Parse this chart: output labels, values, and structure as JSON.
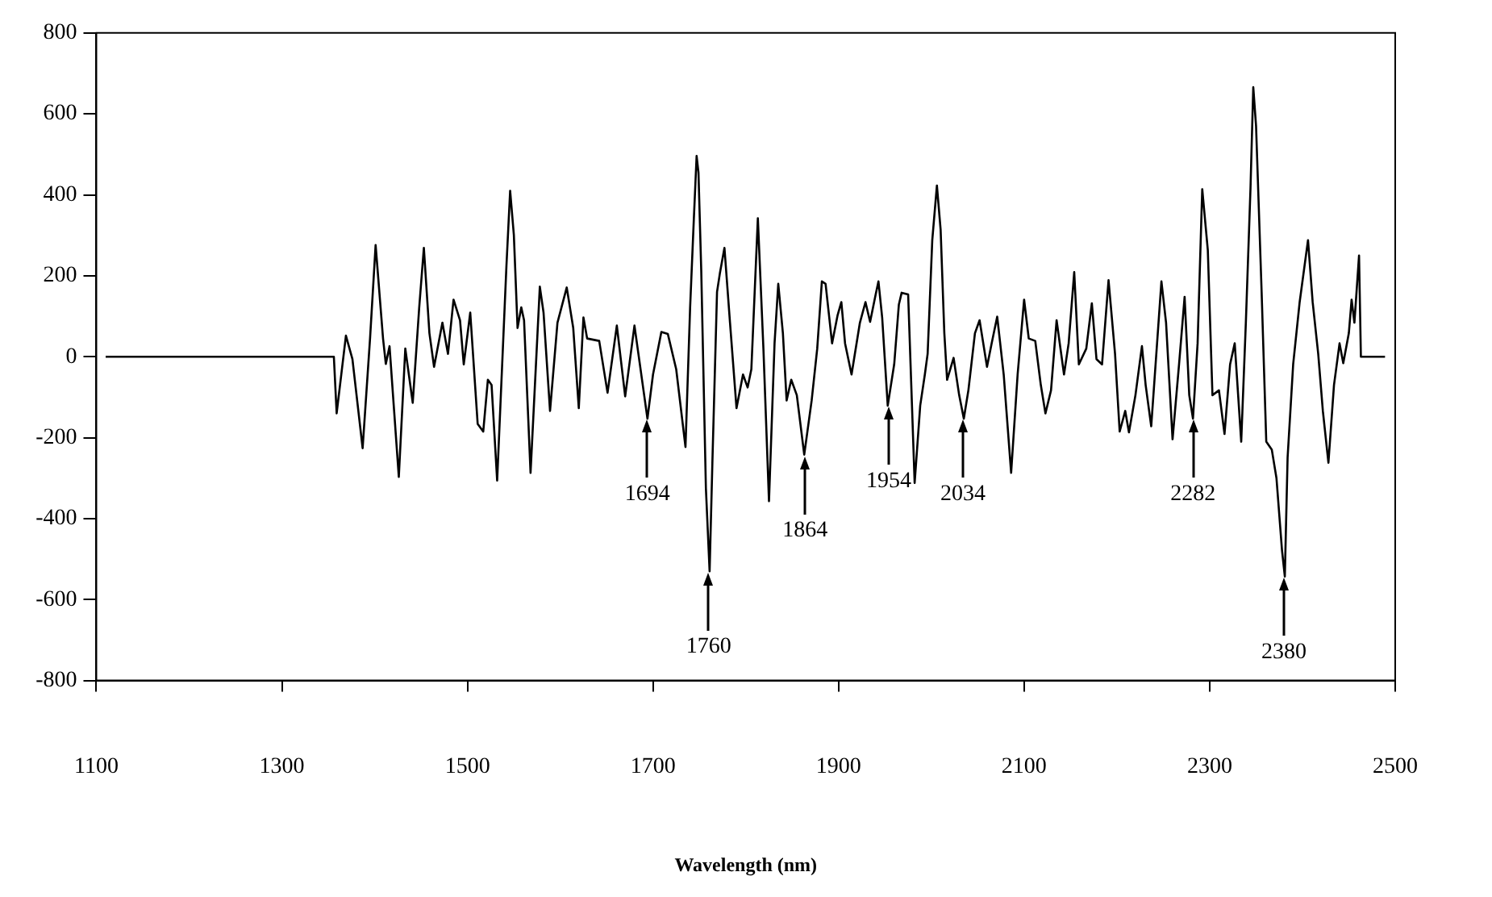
{
  "chart_data": {
    "type": "line",
    "xlabel": "Wavelength (nm)",
    "x": [
      1110,
      1356,
      1359,
      1369,
      1376,
      1387,
      1395,
      1401,
      1409,
      1412,
      1416,
      1426,
      1433,
      1441,
      1448,
      1453,
      1459,
      1464,
      1473,
      1479,
      1485,
      1492,
      1496,
      1503,
      1511,
      1517,
      1522,
      1526,
      1532,
      1542,
      1546,
      1550,
      1554,
      1558,
      1561,
      1568,
      1578,
      1582,
      1589,
      1597,
      1607,
      1614,
      1620,
      1625,
      1629,
      1642,
      1651,
      1661,
      1670,
      1680,
      1694,
      1700,
      1709,
      1716,
      1725,
      1735,
      1740,
      1744,
      1747,
      1749,
      1752,
      1757,
      1761,
      1764,
      1769,
      1772,
      1777,
      1783,
      1790,
      1797,
      1802,
      1806,
      1813,
      1819,
      1825,
      1831,
      1835,
      1840,
      1844,
      1849,
      1855,
      1863,
      1871,
      1877,
      1882,
      1886,
      1893,
      1899,
      1903,
      1907,
      1914,
      1923,
      1929,
      1934,
      1940,
      1943,
      1947,
      1953,
      1960,
      1965,
      1968,
      1975,
      1982,
      1988,
      1993,
      1996,
      2001,
      2006,
      2010,
      2014,
      2017,
      2024,
      2030,
      2035,
      2040,
      2047,
      2052,
      2060,
      2065,
      2071,
      2078,
      2086,
      2093,
      2100,
      2105,
      2112,
      2118,
      2123,
      2129,
      2135,
      2143,
      2148,
      2154,
      2159,
      2167,
      2173,
      2178,
      2184,
      2191,
      2198,
      2203,
      2209,
      2213,
      2220,
      2227,
      2231,
      2237,
      2248,
      2253,
      2260,
      2267,
      2273,
      2278,
      2282,
      2287,
      2292,
      2298,
      2303,
      2310,
      2316,
      2322,
      2327,
      2334,
      2339,
      2344,
      2347,
      2350,
      2356,
      2361,
      2367,
      2372,
      2378,
      2381,
      2384,
      2390,
      2397,
      2406,
      2411,
      2417,
      2422,
      2428,
      2434,
      2440,
      2444,
      2450,
      2453,
      2456,
      2461,
      2463,
      2489
    ],
    "series": [
      {
        "color": "#000000",
        "values": [
          0,
          0,
          -140,
          52,
          -6,
          -226,
          45,
          276,
          45,
          -18,
          26,
          -297,
          20,
          -114,
          122,
          269,
          58,
          -25,
          84,
          7,
          141,
          90,
          -19,
          109,
          -166,
          -185,
          -57,
          -70,
          -306,
          224,
          410,
          301,
          71,
          122,
          90,
          -287,
          173,
          109,
          -134,
          84,
          171,
          71,
          -127,
          97,
          45,
          39,
          -89,
          77,
          -98,
          77,
          -153,
          -44,
          61,
          56,
          -31,
          -223,
          122,
          340,
          496,
          455,
          212,
          -325,
          -530,
          -261,
          160,
          205,
          269,
          84,
          -127,
          -44,
          -76,
          -31,
          342,
          20,
          -357,
          33,
          180,
          58,
          -108,
          -57,
          -95,
          -242,
          -108,
          20,
          186,
          180,
          33,
          103,
          135,
          33,
          -44,
          84,
          135,
          86,
          154,
          186,
          97,
          -121,
          -18,
          129,
          158,
          154,
          -312,
          -121,
          -44,
          7,
          288,
          423,
          314,
          58,
          -57,
          -3,
          -95,
          -153,
          -82,
          58,
          90,
          -25,
          33,
          99,
          -44,
          -287,
          -44,
          141,
          45,
          39,
          -70,
          -140,
          -83,
          90,
          -44,
          33,
          209,
          -19,
          20,
          132,
          -6,
          -19,
          189,
          7,
          -185,
          -134,
          -187,
          -95,
          26,
          -70,
          -172,
          186,
          84,
          -204,
          -19,
          148,
          -95,
          -153,
          33,
          414,
          263,
          -95,
          -83,
          -191,
          -19,
          33,
          -210,
          84,
          416,
          666,
          570,
          160,
          -210,
          -230,
          -300,
          -479,
          -543,
          -249,
          -19,
          135,
          288,
          135,
          7,
          -134,
          -262,
          -70,
          33,
          -16,
          58,
          141,
          84,
          250,
          0,
          0
        ]
      }
    ],
    "xlim": [
      1100,
      2500
    ],
    "xticks": [
      1100,
      1300,
      1500,
      1700,
      1900,
      2100,
      2300,
      2500
    ],
    "ylim": [
      -800,
      800
    ],
    "yticks": [
      -800,
      -600,
      -400,
      -200,
      0,
      200,
      400,
      600,
      800
    ],
    "grid": false,
    "legend": false,
    "marker": "none",
    "line_style": "solid",
    "annotations": [
      {
        "text": "1694",
        "x": 1694,
        "y": -153
      },
      {
        "text": "1760",
        "x": 1760,
        "y": -530
      },
      {
        "text": "1864",
        "x": 1864,
        "y": -242
      },
      {
        "text": "1954",
        "x": 1954,
        "y": -121
      },
      {
        "text": "2034",
        "x": 2034,
        "y": -153
      },
      {
        "text": "2282",
        "x": 2282,
        "y": -153
      },
      {
        "text": "2380",
        "x": 2380,
        "y": -543
      }
    ]
  }
}
